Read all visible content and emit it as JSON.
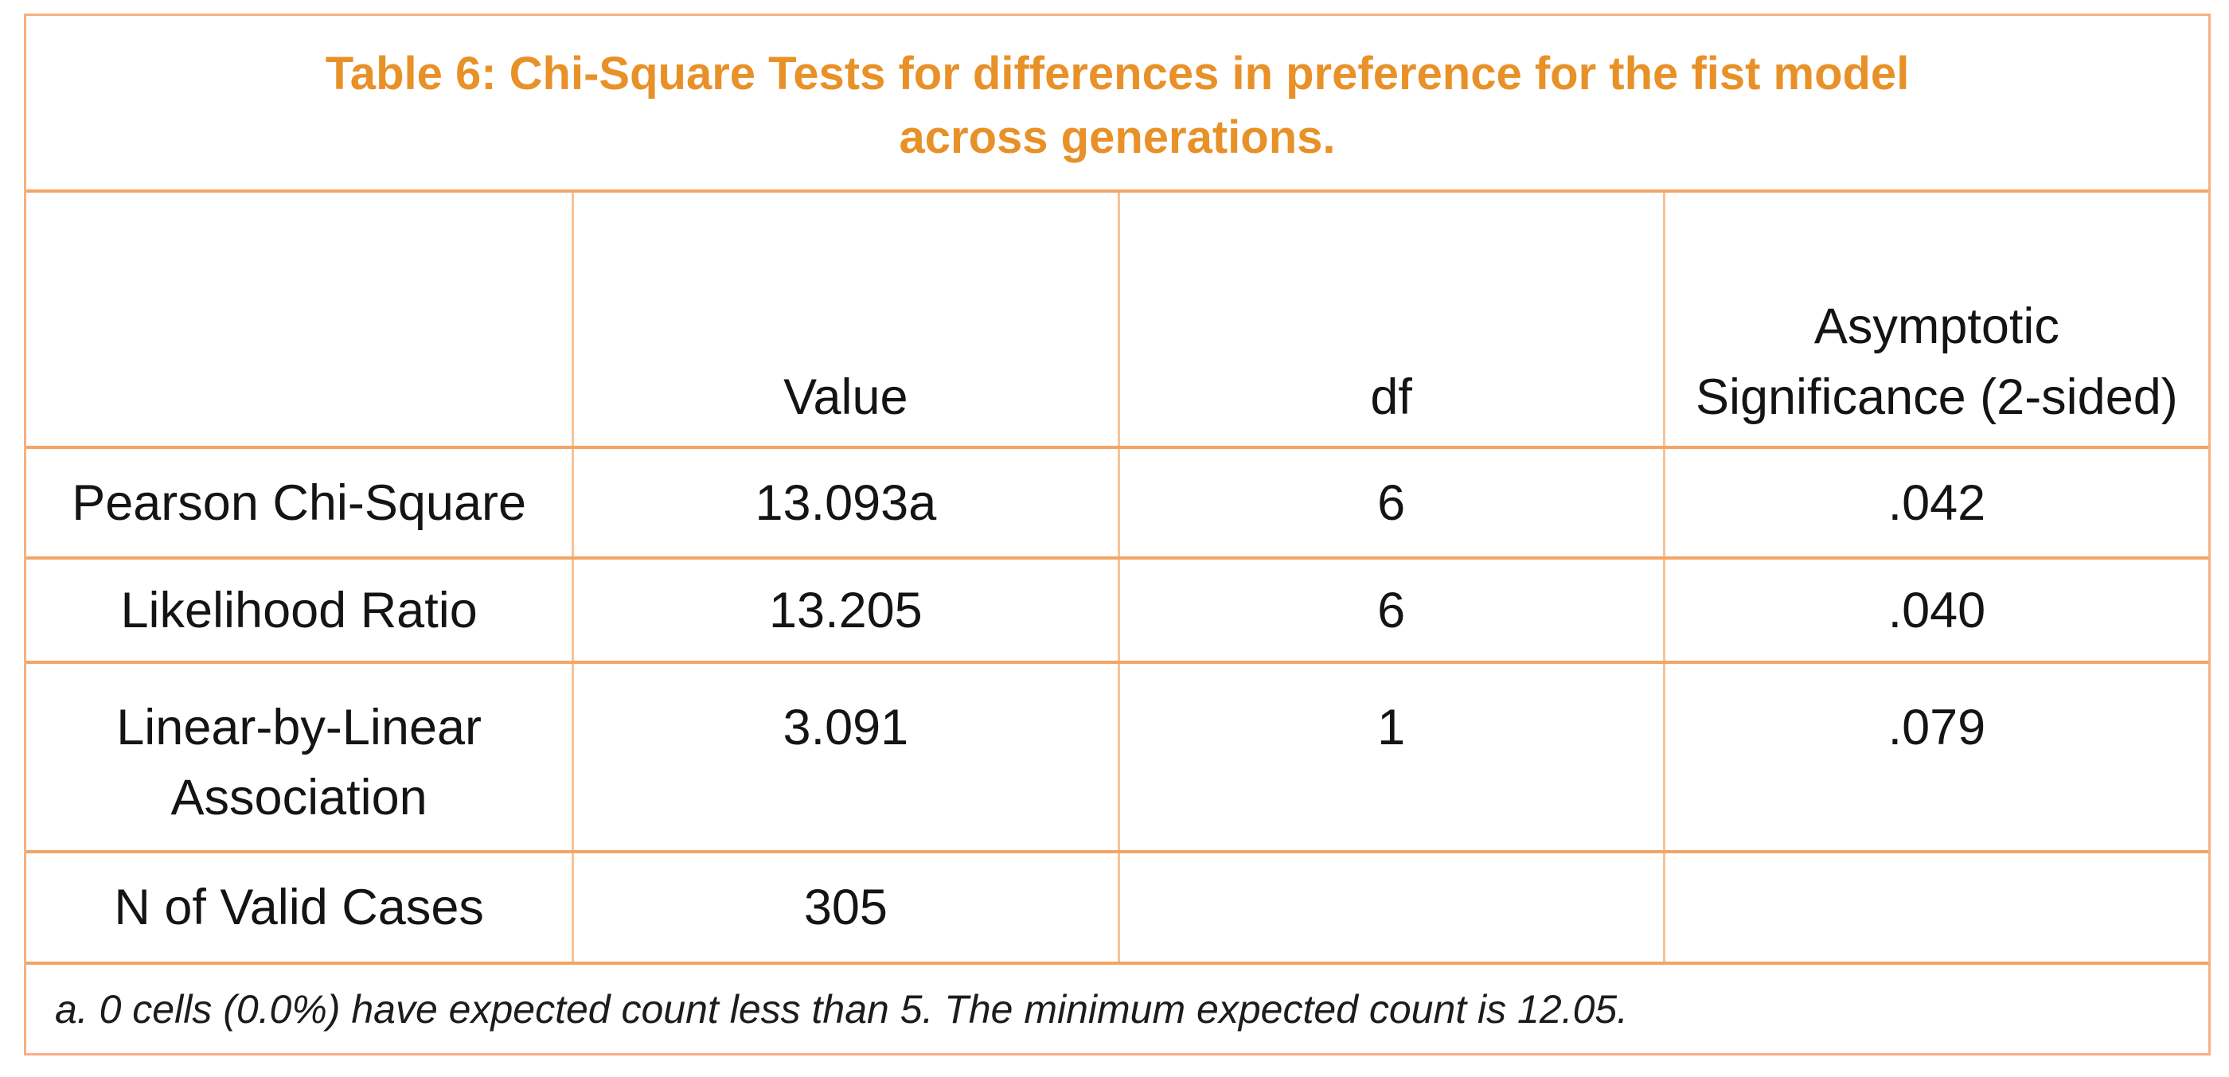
{
  "chart_data": {
    "type": "table",
    "title": "Table 6: Chi-Square Tests for differences in preference for the fist model across generations.",
    "columns": [
      "",
      "Value",
      "df",
      "Asymptotic Significance (2-sided)"
    ],
    "rows": [
      [
        "Pearson Chi-Square",
        "13.093a",
        "6",
        ".042"
      ],
      [
        "Likelihood Ratio",
        "13.205",
        "6",
        ".040"
      ],
      [
        "Linear-by-Linear Association",
        "3.091",
        "1",
        ".079"
      ],
      [
        "N of Valid Cases",
        "305",
        "",
        ""
      ]
    ],
    "footnote": "a. 0 cells (0.0%) have expected count less than 5. The minimum expected count is 12.05."
  },
  "display": {
    "title_lines": [
      "Table 6: Chi-Square Tests for differences in preference for the fist model",
      "across generations."
    ]
  },
  "colors": {
    "title_text": "#e89128",
    "outer_border": "#f5b183",
    "horizontal_rule": "#f2a566",
    "vertical_rule": "#f7c398",
    "body_text": "#141414",
    "background": "#ffffff"
  }
}
